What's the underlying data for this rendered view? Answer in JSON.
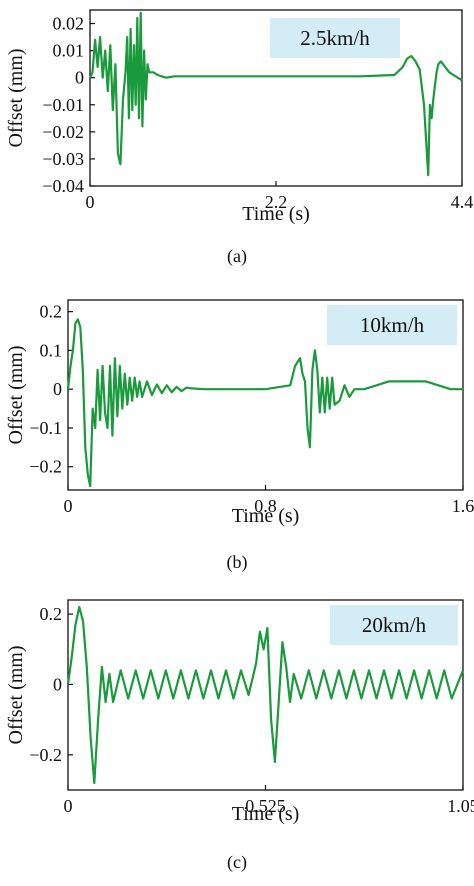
{
  "chart_data": [
    {
      "type": "line",
      "caption": "(a)",
      "badge": "2.5km/h",
      "xlabel": "Time (s)",
      "ylabel": "Offset (mm)",
      "xlim": [
        0,
        4.4
      ],
      "ylim": [
        -0.04,
        0.025
      ],
      "xticks": [
        0,
        2.2,
        4.4
      ],
      "xtick_labels": [
        "0",
        "2.2",
        "4.4"
      ],
      "yticks": [
        0.02,
        0.01,
        0,
        -0.01,
        -0.02,
        -0.03,
        -0.04
      ],
      "ytick_labels": [
        "0.02",
        "0.01",
        "0",
        "−0.01",
        "−0.02",
        "−0.03",
        "−0.04"
      ],
      "series": [
        {
          "color": "#1a9a3c",
          "x": [
            0,
            0.03,
            0.06,
            0.09,
            0.12,
            0.15,
            0.18,
            0.21,
            0.24,
            0.27,
            0.3,
            0.33,
            0.36,
            0.39,
            0.42,
            0.44,
            0.46,
            0.48,
            0.5,
            0.52,
            0.54,
            0.56,
            0.58,
            0.6,
            0.62,
            0.64,
            0.66,
            0.68,
            0.7,
            0.75,
            0.8,
            0.9,
            1.0,
            1.2,
            1.6,
            2.0,
            2.4,
            2.8,
            3.2,
            3.6,
            3.7,
            3.75,
            3.8,
            3.85,
            3.9,
            3.95,
            4.0,
            4.02,
            4.04,
            4.06,
            4.08,
            4.1,
            4.12,
            4.15,
            4.2,
            4.25,
            4.3,
            4.35,
            4.4
          ],
          "y": [
            0,
            0.002,
            0.014,
            0.004,
            0.015,
            0.0,
            0.01,
            -0.005,
            0.012,
            -0.012,
            0.005,
            -0.028,
            -0.032,
            -0.008,
            0.002,
            0.015,
            -0.015,
            0.018,
            -0.012,
            0.012,
            -0.01,
            0.022,
            -0.015,
            0.024,
            -0.018,
            0.01,
            -0.008,
            0.005,
            0.002,
            0.002,
            0.001,
            0.0,
            0.0005,
            0.0005,
            0.0005,
            0.0005,
            0.0005,
            0.0005,
            0.0005,
            0.001,
            0.004,
            0.007,
            0.008,
            0.006,
            0.003,
            -0.01,
            -0.036,
            -0.01,
            -0.015,
            -0.008,
            -0.003,
            0.002,
            0.005,
            0.006,
            0.004,
            0.002,
            0.001,
            0.0,
            -0.001
          ]
        }
      ]
    },
    {
      "type": "line",
      "caption": "(b)",
      "badge": "10km/h",
      "xlabel": "Time (s)",
      "ylabel": "Offset (mm)",
      "xlim": [
        0,
        1.6
      ],
      "ylim": [
        -0.26,
        0.23
      ],
      "xticks": [
        0,
        0.8,
        1.6
      ],
      "xtick_labels": [
        "0",
        "0.8",
        "1.6"
      ],
      "yticks": [
        0.2,
        0.1,
        0,
        -0.1,
        -0.2
      ],
      "ytick_labels": [
        "0.2",
        "0.1",
        "0",
        "−0.1",
        "−0.2"
      ],
      "series": [
        {
          "color": "#1a9a3c",
          "x": [
            0,
            0.01,
            0.02,
            0.03,
            0.04,
            0.05,
            0.06,
            0.07,
            0.08,
            0.09,
            0.1,
            0.11,
            0.12,
            0.13,
            0.14,
            0.15,
            0.16,
            0.17,
            0.18,
            0.19,
            0.2,
            0.21,
            0.22,
            0.23,
            0.24,
            0.25,
            0.26,
            0.27,
            0.28,
            0.29,
            0.3,
            0.32,
            0.34,
            0.36,
            0.38,
            0.4,
            0.42,
            0.44,
            0.46,
            0.48,
            0.5,
            0.55,
            0.6,
            0.7,
            0.8,
            0.9,
            0.92,
            0.94,
            0.95,
            0.96,
            0.97,
            0.98,
            0.99,
            1.0,
            1.01,
            1.02,
            1.03,
            1.04,
            1.05,
            1.06,
            1.07,
            1.08,
            1.1,
            1.12,
            1.14,
            1.16,
            1.2,
            1.25,
            1.3,
            1.35,
            1.4,
            1.45,
            1.5,
            1.55,
            1.6
          ],
          "y": [
            0,
            0.06,
            0.1,
            0.17,
            0.18,
            0.16,
            0.05,
            -0.15,
            -0.22,
            -0.25,
            -0.05,
            -0.1,
            0.05,
            -0.08,
            0.06,
            -0.06,
            -0.1,
            0.06,
            -0.12,
            0.08,
            -0.07,
            0.06,
            -0.05,
            0.04,
            -0.04,
            0.03,
            -0.03,
            0.03,
            -0.02,
            0.02,
            -0.02,
            0.02,
            -0.015,
            0.012,
            -0.01,
            0.01,
            -0.008,
            0.006,
            -0.005,
            0.004,
            0.002,
            0.0,
            0.0,
            0.0,
            0.0,
            0.01,
            0.06,
            0.08,
            0.04,
            0.02,
            -0.1,
            -0.15,
            0.05,
            0.1,
            0.05,
            -0.06,
            0.03,
            -0.06,
            0.03,
            -0.05,
            0.03,
            -0.04,
            -0.03,
            0.01,
            -0.02,
            0.0,
            0.0,
            0.01,
            0.02,
            0.02,
            0.02,
            0.02,
            0.01,
            0.0,
            0.0
          ]
        }
      ]
    },
    {
      "type": "line",
      "caption": "(c)",
      "badge": "20km/h",
      "xlabel": "Time (s)",
      "ylabel": "Offset (mm)",
      "xlim": [
        0,
        1.05
      ],
      "ylim": [
        -0.3,
        0.24
      ],
      "xticks": [
        0,
        0.525,
        1.05
      ],
      "xtick_labels": [
        "0",
        "0.525",
        "1.05"
      ],
      "yticks": [
        0.2,
        0,
        -0.2
      ],
      "ytick_labels": [
        "0.2",
        "0",
        "−0.2"
      ],
      "series": [
        {
          "color": "#1a9a3c",
          "x": [
            0,
            0.01,
            0.02,
            0.03,
            0.04,
            0.05,
            0.06,
            0.07,
            0.08,
            0.09,
            0.1,
            0.11,
            0.12,
            0.14,
            0.16,
            0.18,
            0.2,
            0.22,
            0.24,
            0.26,
            0.28,
            0.3,
            0.32,
            0.34,
            0.36,
            0.38,
            0.4,
            0.42,
            0.44,
            0.46,
            0.48,
            0.5,
            0.51,
            0.52,
            0.53,
            0.54,
            0.55,
            0.56,
            0.57,
            0.58,
            0.59,
            0.6,
            0.62,
            0.64,
            0.66,
            0.68,
            0.7,
            0.72,
            0.74,
            0.76,
            0.78,
            0.8,
            0.82,
            0.84,
            0.86,
            0.88,
            0.9,
            0.92,
            0.94,
            0.96,
            0.98,
            1.0,
            1.02,
            1.05
          ],
          "y": [
            0,
            0.08,
            0.17,
            0.22,
            0.18,
            0.05,
            -0.15,
            -0.28,
            -0.1,
            0.05,
            -0.05,
            0.03,
            -0.05,
            0.04,
            -0.04,
            0.04,
            -0.04,
            0.04,
            -0.04,
            0.04,
            -0.04,
            0.04,
            -0.04,
            0.04,
            -0.04,
            0.04,
            -0.04,
            0.04,
            -0.04,
            0.04,
            -0.03,
            0.06,
            0.15,
            0.1,
            0.16,
            -0.1,
            -0.22,
            -0.05,
            0.12,
            0.05,
            -0.05,
            0.03,
            -0.04,
            0.04,
            -0.04,
            0.04,
            -0.04,
            0.04,
            -0.04,
            0.04,
            -0.04,
            0.04,
            -0.04,
            0.04,
            -0.04,
            0.04,
            -0.04,
            0.04,
            -0.04,
            0.04,
            -0.04,
            0.04,
            -0.04,
            0.04
          ]
        }
      ]
    }
  ]
}
